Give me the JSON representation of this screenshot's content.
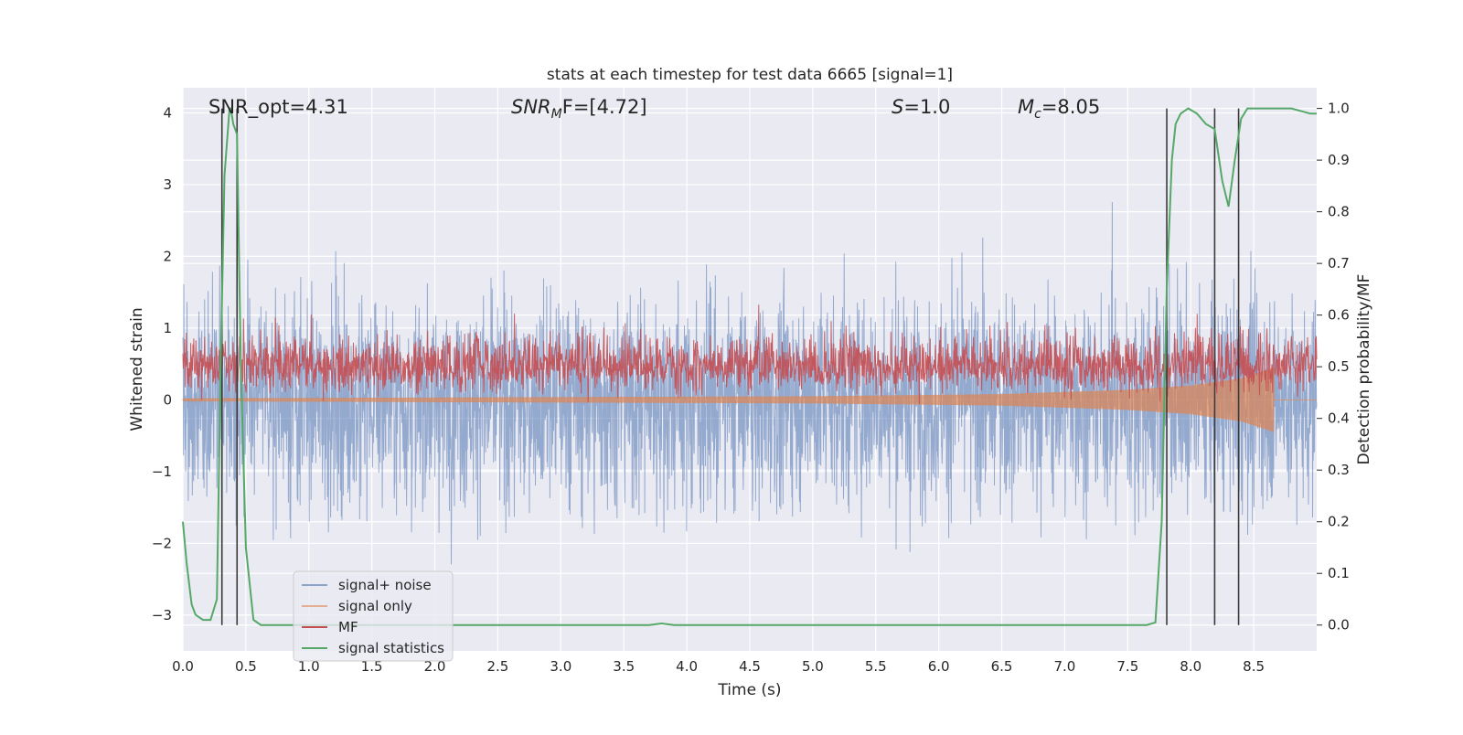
{
  "chart_data": {
    "type": "line",
    "title": "stats at each timestep for test data 6665 [signal=1]",
    "xlabel": "Time (s)",
    "ylabel_left": "Whitened strain",
    "ylabel_right": "Detection probability/MF",
    "xlim": [
      0.0,
      9.0
    ],
    "ylim_left": [
      -3.5,
      4.35
    ],
    "ylim_right": [
      -0.05,
      1.04
    ],
    "x_ticks": [
      "0.0",
      "0.5",
      "1.0",
      "1.5",
      "2.0",
      "2.5",
      "3.0",
      "3.5",
      "4.0",
      "4.5",
      "5.0",
      "5.5",
      "6.0",
      "6.5",
      "7.0",
      "7.5",
      "8.0",
      "8.5"
    ],
    "y_left_ticks": [
      "−3",
      "−2",
      "−1",
      "0",
      "1",
      "2",
      "3",
      "4"
    ],
    "y_right_ticks": [
      "0.0",
      "0.1",
      "0.2",
      "0.3",
      "0.4",
      "0.5",
      "0.6",
      "0.7",
      "0.8",
      "0.9",
      "1.0"
    ],
    "grid": true,
    "legend_position": "lower-left",
    "annotations": {
      "snr_opt": "SNR_opt=4.31",
      "snr_mf_sym": "SNR",
      "snr_mf_sub": "M",
      "snr_mf_rest": "F=[4.72]",
      "s_sym": "S",
      "s_rest": "=1.0",
      "mc_sym": "M",
      "mc_sub": "c",
      "mc_rest": "=8.05"
    },
    "vertical_lines": [
      0.31,
      0.43,
      7.81,
      8.19,
      8.38
    ],
    "series": [
      {
        "name": "signal+ noise",
        "color": "#4c72b0",
        "axis": "left",
        "description": "noise with amplitude about ±2, peaks up to about ±3.5"
      },
      {
        "name": "signal only",
        "color": "#dd8452",
        "axis": "left",
        "chirp_end": 8.66,
        "envelope": [
          [
            0.0,
            0.02
          ],
          [
            5.0,
            0.05
          ],
          [
            6.5,
            0.08
          ],
          [
            7.5,
            0.14
          ],
          [
            8.0,
            0.2
          ],
          [
            8.4,
            0.3
          ],
          [
            8.66,
            0.45
          ]
        ]
      },
      {
        "name": "MF",
        "color": "#c44e52",
        "axis": "right",
        "baseline": 0.5,
        "spread": 0.03
      },
      {
        "name": "signal statistics",
        "color": "#55a868",
        "axis": "right",
        "x": [
          0.0,
          0.03,
          0.07,
          0.1,
          0.16,
          0.22,
          0.27,
          0.3,
          0.33,
          0.37,
          0.38,
          0.4,
          0.43,
          0.46,
          0.5,
          0.56,
          0.62,
          0.8,
          1.5,
          2.5,
          3.5,
          3.7,
          3.8,
          3.9,
          4.0,
          5.0,
          6.0,
          7.0,
          7.5,
          7.65,
          7.72,
          7.77,
          7.81,
          7.85,
          7.88,
          7.92,
          7.98,
          8.05,
          8.12,
          8.19,
          8.25,
          8.3,
          8.35,
          8.4,
          8.45,
          8.5,
          8.6,
          8.8,
          8.95,
          9.0
        ],
        "y": [
          0.2,
          0.12,
          0.04,
          0.02,
          0.01,
          0.01,
          0.05,
          0.5,
          0.87,
          1.0,
          1.0,
          0.97,
          0.95,
          0.5,
          0.15,
          0.01,
          0.0,
          0.0,
          0.0,
          0.0,
          0.0,
          0.0,
          0.003,
          0.0,
          0.0,
          0.0,
          0.0,
          0.0,
          0.0,
          0.0,
          0.005,
          0.2,
          0.65,
          0.9,
          0.97,
          0.99,
          1.0,
          0.99,
          0.97,
          0.96,
          0.86,
          0.81,
          0.9,
          0.98,
          1.0,
          1.0,
          1.0,
          1.0,
          0.99,
          0.99
        ]
      }
    ]
  }
}
